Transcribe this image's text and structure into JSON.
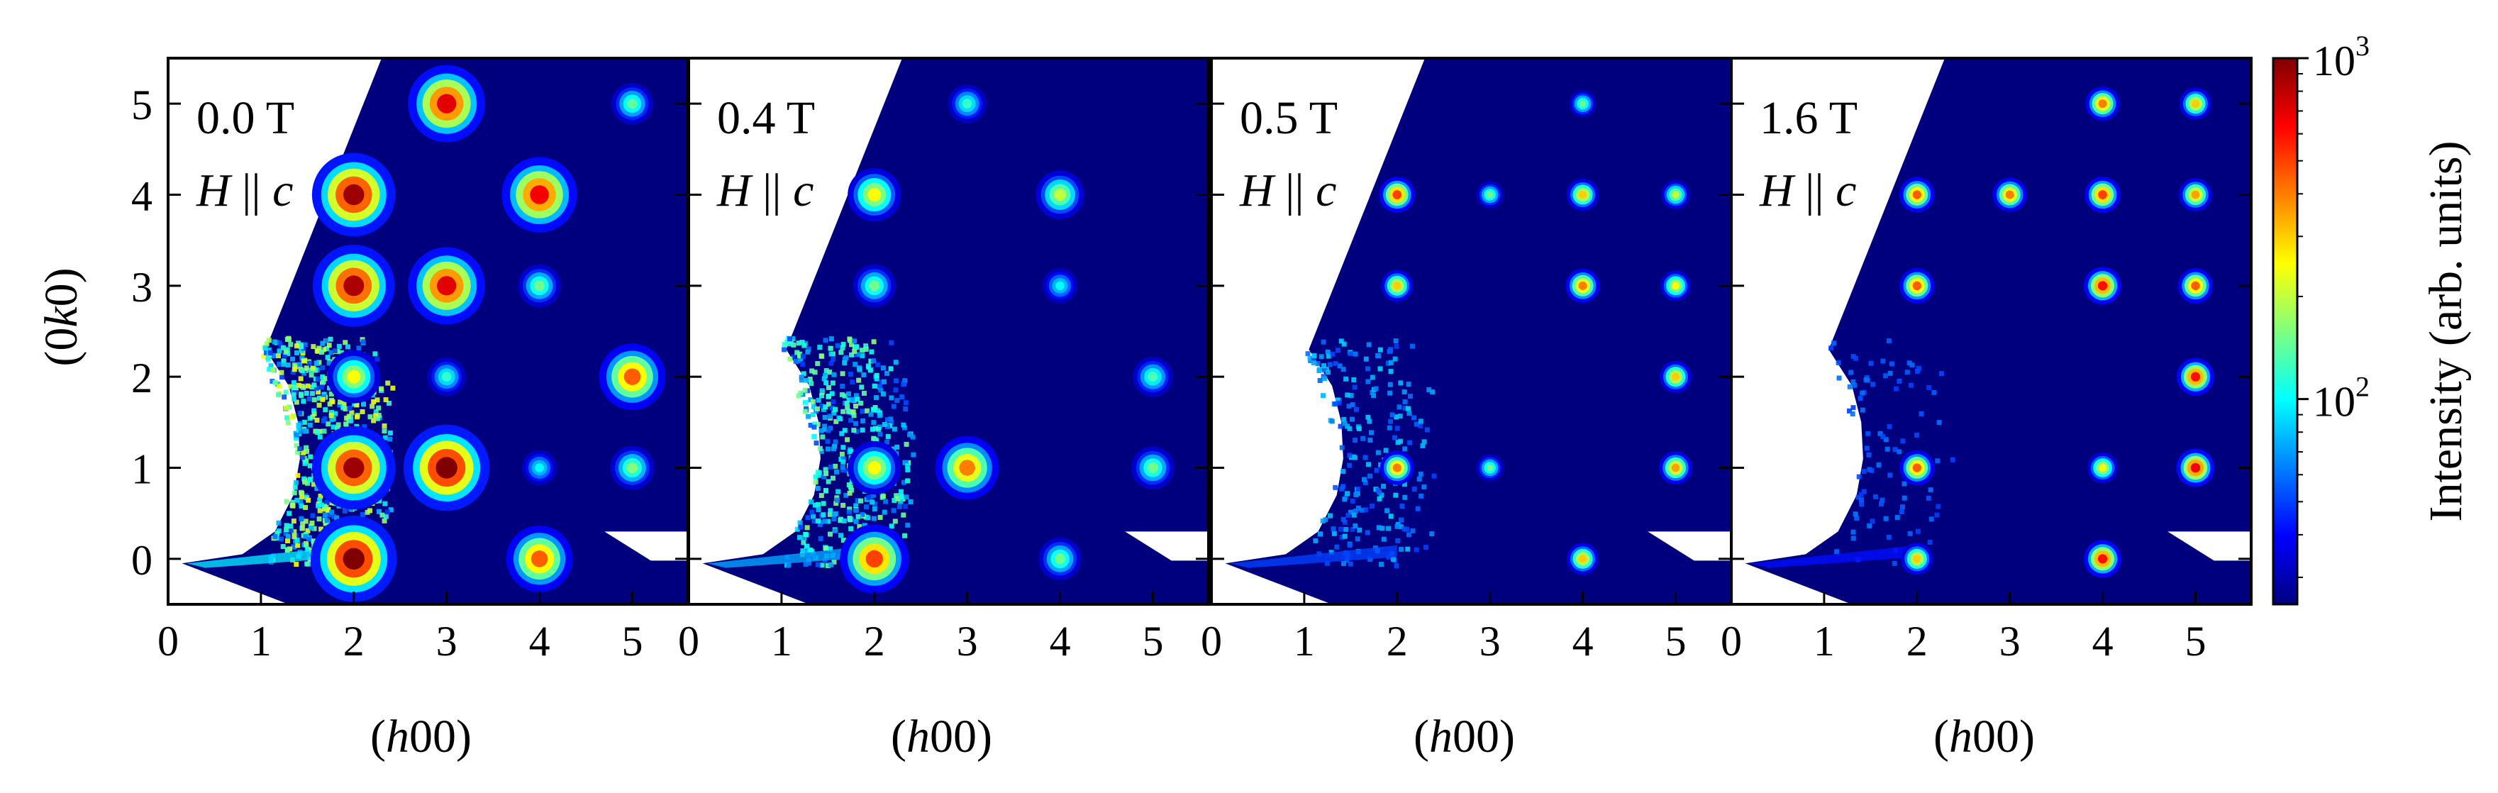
{
  "chart_data": {
    "type": "heatmap",
    "xlabel_parts": [
      "(",
      "h",
      "00)"
    ],
    "ylabel_parts": [
      "(0",
      "k",
      "0)"
    ],
    "xlim": [
      0,
      5.6
    ],
    "ylim": [
      -0.5,
      5.5
    ],
    "x_ticks": [
      "0",
      "1",
      "2",
      "3",
      "4",
      "5"
    ],
    "y_ticks": [
      "0",
      "1",
      "2",
      "3",
      "4",
      "5"
    ],
    "colorbar": {
      "label": "Intensity (arb. units)",
      "scale": "log",
      "range": [
        25,
        1000
      ],
      "ticks": [
        {
          "value": 100,
          "base": "10",
          "exp": "2"
        },
        {
          "value": 1000,
          "base": "10",
          "exp": "3"
        }
      ],
      "colormap": [
        "#00007f",
        "#0000ff",
        "#007fff",
        "#00ffff",
        "#7fff7f",
        "#ffff00",
        "#ff7f00",
        "#ff0000",
        "#7f0000"
      ]
    },
    "panels": [
      {
        "field": "0.0 T",
        "direction_parts": [
          "H",
          " || ",
          "c"
        ],
        "peaks": [
          {
            "h": 2,
            "k": 0,
            "intensity": 1000
          },
          {
            "h": 2,
            "k": 1,
            "intensity": 900
          },
          {
            "h": 2,
            "k": 2,
            "intensity": 250
          },
          {
            "h": 2,
            "k": 3,
            "intensity": 850
          },
          {
            "h": 2,
            "k": 4,
            "intensity": 900
          },
          {
            "h": 3,
            "k": 1,
            "intensity": 1000
          },
          {
            "h": 3,
            "k": 2,
            "intensity": 120
          },
          {
            "h": 3,
            "k": 3,
            "intensity": 700
          },
          {
            "h": 3,
            "k": 5,
            "intensity": 700
          },
          {
            "h": 4,
            "k": 0,
            "intensity": 450
          },
          {
            "h": 4,
            "k": 1,
            "intensity": 100
          },
          {
            "h": 4,
            "k": 3,
            "intensity": 150
          },
          {
            "h": 4,
            "k": 4,
            "intensity": 650
          },
          {
            "h": 5,
            "k": 1,
            "intensity": 160
          },
          {
            "h": 5,
            "k": 2,
            "intensity": 450
          },
          {
            "h": 5,
            "k": 5,
            "intensity": 140
          }
        ]
      },
      {
        "field": "0.4 T",
        "direction_parts": [
          "H",
          " || ",
          "c"
        ],
        "peaks": [
          {
            "h": 2,
            "k": 0,
            "intensity": 500
          },
          {
            "h": 2,
            "k": 1,
            "intensity": 250
          },
          {
            "h": 2,
            "k": 3,
            "intensity": 150
          },
          {
            "h": 2,
            "k": 4,
            "intensity": 250
          },
          {
            "h": 3,
            "k": 1,
            "intensity": 400
          },
          {
            "h": 3,
            "k": 5,
            "intensity": 120
          },
          {
            "h": 4,
            "k": 0,
            "intensity": 150
          },
          {
            "h": 4,
            "k": 3,
            "intensity": 100
          },
          {
            "h": 4,
            "k": 4,
            "intensity": 200
          },
          {
            "h": 5,
            "k": 1,
            "intensity": 150
          },
          {
            "h": 5,
            "k": 2,
            "intensity": 130
          }
        ]
      },
      {
        "field": "0.5 T",
        "direction_parts": [
          "H",
          " || ",
          "c"
        ],
        "peaks": [
          {
            "h": 2,
            "k": 1,
            "intensity": 400
          },
          {
            "h": 2,
            "k": 3,
            "intensity": 300
          },
          {
            "h": 2,
            "k": 4,
            "intensity": 500
          },
          {
            "h": 3,
            "k": 1,
            "intensity": 150
          },
          {
            "h": 3,
            "k": 4,
            "intensity": 150
          },
          {
            "h": 4,
            "k": 0,
            "intensity": 300
          },
          {
            "h": 4,
            "k": 3,
            "intensity": 400
          },
          {
            "h": 4,
            "k": 4,
            "intensity": 300
          },
          {
            "h": 4,
            "k": 5,
            "intensity": 150
          },
          {
            "h": 5,
            "k": 1,
            "intensity": 350
          },
          {
            "h": 5,
            "k": 2,
            "intensity": 300
          },
          {
            "h": 5,
            "k": 3,
            "intensity": 250
          },
          {
            "h": 5,
            "k": 4,
            "intensity": 200
          }
        ]
      },
      {
        "field": "1.6 T",
        "direction_parts": [
          "H",
          " || ",
          "c"
        ],
        "peaks": [
          {
            "h": 2,
            "k": 0,
            "intensity": 300
          },
          {
            "h": 2,
            "k": 1,
            "intensity": 450
          },
          {
            "h": 2,
            "k": 3,
            "intensity": 450
          },
          {
            "h": 2,
            "k": 4,
            "intensity": 450
          },
          {
            "h": 3,
            "k": 4,
            "intensity": 400
          },
          {
            "h": 4,
            "k": 0,
            "intensity": 600
          },
          {
            "h": 4,
            "k": 1,
            "intensity": 250
          },
          {
            "h": 4,
            "k": 3,
            "intensity": 600
          },
          {
            "h": 4,
            "k": 4,
            "intensity": 500
          },
          {
            "h": 4,
            "k": 5,
            "intensity": 400
          },
          {
            "h": 5,
            "k": 1,
            "intensity": 650
          },
          {
            "h": 5,
            "k": 2,
            "intensity": 600
          },
          {
            "h": 5,
            "k": 3,
            "intensity": 450
          },
          {
            "h": 5,
            "k": 4,
            "intensity": 350
          },
          {
            "h": 5,
            "k": 5,
            "intensity": 300
          }
        ]
      }
    ]
  }
}
